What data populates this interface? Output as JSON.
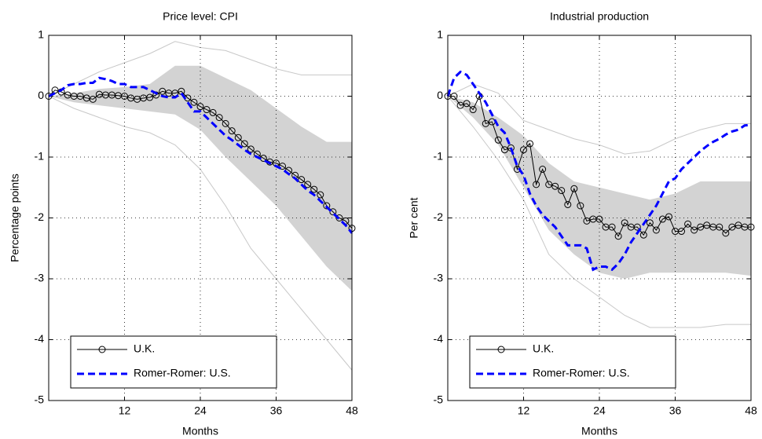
{
  "chart_data": [
    {
      "type": "line",
      "title": "Price level: CPI",
      "xlabel": "Months",
      "ylabel": "Percentage points",
      "x": [
        0,
        1,
        2,
        3,
        4,
        5,
        6,
        7,
        8,
        9,
        10,
        11,
        12,
        13,
        14,
        15,
        16,
        17,
        18,
        19,
        20,
        21,
        22,
        23,
        24,
        25,
        26,
        27,
        28,
        29,
        30,
        31,
        32,
        33,
        34,
        35,
        36,
        37,
        38,
        39,
        40,
        41,
        42,
        43,
        44,
        45,
        46,
        47,
        48
      ],
      "series": [
        {
          "name": "U.K.",
          "color": "#000000",
          "marker": "circle",
          "dash": false,
          "values": [
            0,
            0.1,
            0.07,
            0.02,
            0,
            0,
            -0.03,
            -0.05,
            0.03,
            0.02,
            0.02,
            0.01,
            0,
            -0.03,
            -0.05,
            -0.03,
            -0.02,
            0.02,
            0.08,
            0.05,
            0.05,
            0.08,
            -0.03,
            -0.1,
            -0.17,
            -0.22,
            -0.27,
            -0.35,
            -0.45,
            -0.57,
            -0.68,
            -0.78,
            -0.87,
            -0.95,
            -1.02,
            -1.08,
            -1.1,
            -1.15,
            -1.22,
            -1.3,
            -1.37,
            -1.45,
            -1.53,
            -1.62,
            -1.8,
            -1.9,
            -2.0,
            -2.05,
            -2.17
          ]
        },
        {
          "name": "Romer-Romer: U.S.",
          "color": "#0000ff",
          "marker": "none",
          "dash": true,
          "values": [
            0,
            0.05,
            0.1,
            0.18,
            0.2,
            0.2,
            0.22,
            0.22,
            0.3,
            0.28,
            0.25,
            0.2,
            0.2,
            0.15,
            0.15,
            0.15,
            0.1,
            0.05,
            0,
            -0.02,
            -0.02,
            0.05,
            -0.1,
            -0.25,
            -0.25,
            -0.35,
            -0.45,
            -0.55,
            -0.65,
            -0.72,
            -0.8,
            -0.88,
            -0.95,
            -1.0,
            -1.05,
            -1.1,
            -1.15,
            -1.2,
            -1.28,
            -1.35,
            -1.45,
            -1.55,
            -1.62,
            -1.72,
            -1.82,
            -1.92,
            -2.02,
            -2.12,
            -2.25
          ]
        }
      ],
      "band": {
        "color": "#d3d3d3",
        "x": [
          0,
          4,
          8,
          12,
          16,
          20,
          24,
          28,
          32,
          36,
          40,
          44,
          48
        ],
        "upper": [
          0,
          0.05,
          0.12,
          0.15,
          0.2,
          0.5,
          0.5,
          0.3,
          0.1,
          -0.2,
          -0.5,
          -0.75,
          -0.75
        ],
        "lower": [
          0,
          -0.1,
          -0.15,
          -0.2,
          -0.25,
          -0.3,
          -0.55,
          -1.0,
          -1.4,
          -1.8,
          -2.3,
          -2.8,
          -3.2
        ]
      },
      "outer": {
        "color": "#c8c8c8",
        "x": [
          0,
          4,
          8,
          12,
          16,
          20,
          24,
          28,
          32,
          36,
          40,
          44,
          48
        ],
        "upper": [
          0,
          0.2,
          0.4,
          0.55,
          0.7,
          0.9,
          0.8,
          0.75,
          0.6,
          0.45,
          0.35,
          0.35,
          0.35
        ],
        "lower": [
          0,
          -0.2,
          -0.35,
          -0.5,
          -0.6,
          -0.8,
          -1.2,
          -1.8,
          -2.5,
          -3.0,
          -3.5,
          -4.0,
          -4.5
        ]
      },
      "xlim": [
        0,
        48
      ],
      "ylim": [
        -5,
        1
      ],
      "xticks": [
        12,
        24,
        36,
        48
      ],
      "yticks": [
        -5,
        -4,
        -3,
        -2,
        -1,
        0,
        1
      ],
      "grid": true,
      "legend": "lower left"
    },
    {
      "type": "line",
      "title": "Industrial production",
      "xlabel": "Months",
      "ylabel": "Per cent",
      "x": [
        0,
        1,
        2,
        3,
        4,
        5,
        6,
        7,
        8,
        9,
        10,
        11,
        12,
        13,
        14,
        15,
        16,
        17,
        18,
        19,
        20,
        21,
        22,
        23,
        24,
        25,
        26,
        27,
        28,
        29,
        30,
        31,
        32,
        33,
        34,
        35,
        36,
        37,
        38,
        39,
        40,
        41,
        42,
        43,
        44,
        45,
        46,
        47,
        48
      ],
      "series": [
        {
          "name": "U.K.",
          "color": "#000000",
          "marker": "circle",
          "dash": false,
          "values": [
            0,
            0,
            -0.15,
            -0.12,
            -0.22,
            0,
            -0.45,
            -0.42,
            -0.72,
            -0.88,
            -0.85,
            -1.2,
            -0.88,
            -0.78,
            -1.45,
            -1.2,
            -1.45,
            -1.48,
            -1.55,
            -1.78,
            -1.52,
            -1.8,
            -2.05,
            -2.02,
            -2.02,
            -2.15,
            -2.15,
            -2.3,
            -2.08,
            -2.15,
            -2.15,
            -2.28,
            -2.08,
            -2.2,
            -2.02,
            -1.98,
            -2.22,
            -2.22,
            -2.1,
            -2.2,
            -2.15,
            -2.12,
            -2.15,
            -2.15,
            -2.25,
            -2.15,
            -2.12,
            -2.15,
            -2.15
          ]
        },
        {
          "name": "Romer-Romer: U.S.",
          "color": "#0000ff",
          "marker": "none",
          "dash": true,
          "values": [
            0,
            0.3,
            0.4,
            0.35,
            0.2,
            0.05,
            -0.1,
            -0.3,
            -0.5,
            -0.6,
            -0.85,
            -1.15,
            -1.3,
            -1.6,
            -1.8,
            -1.95,
            -2.05,
            -2.15,
            -2.3,
            -2.45,
            -2.45,
            -2.45,
            -2.5,
            -2.85,
            -2.8,
            -2.8,
            -2.85,
            -2.75,
            -2.6,
            -2.4,
            -2.25,
            -2.1,
            -1.95,
            -1.8,
            -1.6,
            -1.4,
            -1.35,
            -1.2,
            -1.1,
            -1.0,
            -0.9,
            -0.82,
            -0.75,
            -0.7,
            -0.63,
            -0.58,
            -0.55,
            -0.48,
            -0.47
          ]
        }
      ],
      "band": {
        "color": "#d3d3d3",
        "x": [
          0,
          4,
          8,
          12,
          16,
          20,
          24,
          28,
          32,
          36,
          40,
          44,
          48
        ],
        "upper": [
          0,
          -0.1,
          -0.35,
          -0.65,
          -1.1,
          -1.4,
          -1.5,
          -1.6,
          -1.7,
          -1.6,
          -1.4,
          -1.4,
          -1.4
        ],
        "lower": [
          0,
          -0.35,
          -0.8,
          -1.5,
          -2.2,
          -2.6,
          -2.9,
          -3.0,
          -2.9,
          -2.9,
          -2.9,
          -2.9,
          -2.95
        ]
      },
      "outer": {
        "color": "#c8c8c8",
        "x": [
          0,
          4,
          8,
          12,
          16,
          20,
          24,
          28,
          32,
          36,
          40,
          44,
          48
        ],
        "upper": [
          0,
          0.2,
          0.05,
          -0.4,
          -0.55,
          -0.7,
          -0.8,
          -0.95,
          -0.9,
          -0.7,
          -0.55,
          -0.45,
          -0.45
        ],
        "lower": [
          0,
          -0.5,
          -1.05,
          -1.7,
          -2.6,
          -3.0,
          -3.3,
          -3.6,
          -3.8,
          -3.8,
          -3.8,
          -3.75,
          -3.75
        ]
      },
      "xlim": [
        0,
        48
      ],
      "ylim": [
        -5,
        1
      ],
      "xticks": [
        12,
        24,
        36,
        48
      ],
      "yticks": [
        -5,
        -4,
        -3,
        -2,
        -1,
        0,
        1
      ],
      "grid": true,
      "legend": "lower left"
    }
  ]
}
